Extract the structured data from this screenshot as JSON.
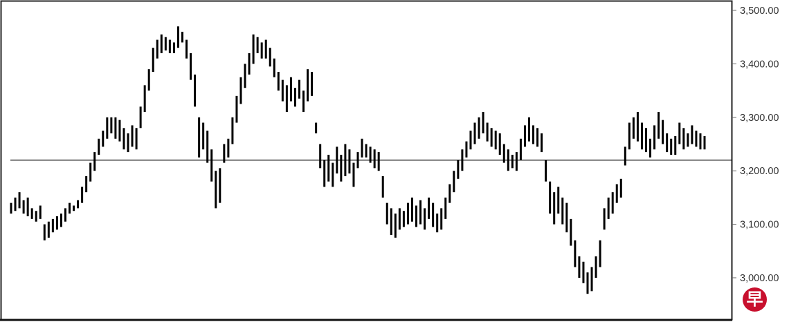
{
  "chart_data": {
    "type": "ohlc",
    "title": "",
    "xlabel": "",
    "ylabel": "",
    "ylim": [
      2930,
      3510
    ],
    "y_axis_position": "right",
    "yticks": [
      3000,
      3100,
      3200,
      3300,
      3400,
      3500
    ],
    "ytick_labels": [
      "3,000.00",
      "3,100.00",
      "3,200.00",
      "3,300.00",
      "3,400.00",
      "3,500.00"
    ],
    "grid": false,
    "reference_line": 3220,
    "bar_color": "#000000",
    "bars_high_low": [
      [
        3140,
        3120
      ],
      [
        3150,
        3125
      ],
      [
        3160,
        3130
      ],
      [
        3145,
        3120
      ],
      [
        3150,
        3115
      ],
      [
        3130,
        3110
      ],
      [
        3125,
        3105
      ],
      [
        3135,
        3110
      ],
      [
        3100,
        3070
      ],
      [
        3105,
        3075
      ],
      [
        3110,
        3085
      ],
      [
        3115,
        3090
      ],
      [
        3120,
        3095
      ],
      [
        3130,
        3105
      ],
      [
        3140,
        3120
      ],
      [
        3135,
        3125
      ],
      [
        3145,
        3130
      ],
      [
        3170,
        3140
      ],
      [
        3190,
        3160
      ],
      [
        3215,
        3180
      ],
      [
        3235,
        3200
      ],
      [
        3260,
        3230
      ],
      [
        3275,
        3245
      ],
      [
        3300,
        3260
      ],
      [
        3300,
        3270
      ],
      [
        3300,
        3260
      ],
      [
        3295,
        3255
      ],
      [
        3280,
        3240
      ],
      [
        3270,
        3235
      ],
      [
        3285,
        3245
      ],
      [
        3280,
        3240
      ],
      [
        3320,
        3280
      ],
      [
        3360,
        3310
      ],
      [
        3390,
        3350
      ],
      [
        3430,
        3385
      ],
      [
        3445,
        3410
      ],
      [
        3455,
        3420
      ],
      [
        3450,
        3425
      ],
      [
        3445,
        3420
      ],
      [
        3440,
        3420
      ],
      [
        3470,
        3430
      ],
      [
        3460,
        3440
      ],
      [
        3445,
        3410
      ],
      [
        3420,
        3370
      ],
      [
        3380,
        3320
      ],
      [
        3300,
        3225
      ],
      [
        3290,
        3240
      ],
      [
        3275,
        3215
      ],
      [
        3240,
        3180
      ],
      [
        3200,
        3130
      ],
      [
        3205,
        3140
      ],
      [
        3250,
        3215
      ],
      [
        3260,
        3225
      ],
      [
        3300,
        3250
      ],
      [
        3340,
        3290
      ],
      [
        3375,
        3325
      ],
      [
        3400,
        3355
      ],
      [
        3420,
        3380
      ],
      [
        3455,
        3400
      ],
      [
        3450,
        3420
      ],
      [
        3440,
        3410
      ],
      [
        3445,
        3410
      ],
      [
        3430,
        3395
      ],
      [
        3410,
        3375
      ],
      [
        3385,
        3350
      ],
      [
        3370,
        3330
      ],
      [
        3360,
        3310
      ],
      [
        3375,
        3330
      ],
      [
        3355,
        3320
      ],
      [
        3370,
        3335
      ],
      [
        3350,
        3310
      ],
      [
        3390,
        3330
      ],
      [
        3385,
        3340
      ],
      [
        3290,
        3270
      ],
      [
        3250,
        3205
      ],
      [
        3220,
        3170
      ],
      [
        3230,
        3180
      ],
      [
        3215,
        3170
      ],
      [
        3245,
        3195
      ],
      [
        3230,
        3180
      ],
      [
        3250,
        3190
      ],
      [
        3240,
        3195
      ],
      [
        3215,
        3170
      ],
      [
        3235,
        3205
      ],
      [
        3260,
        3225
      ],
      [
        3250,
        3225
      ],
      [
        3245,
        3215
      ],
      [
        3240,
        3205
      ],
      [
        3235,
        3200
      ],
      [
        3190,
        3150
      ],
      [
        3140,
        3100
      ],
      [
        3130,
        3080
      ],
      [
        3120,
        3075
      ],
      [
        3130,
        3090
      ],
      [
        3125,
        3095
      ],
      [
        3140,
        3100
      ],
      [
        3150,
        3105
      ],
      [
        3135,
        3095
      ],
      [
        3145,
        3100
      ],
      [
        3130,
        3090
      ],
      [
        3150,
        3110
      ],
      [
        3140,
        3095
      ],
      [
        3120,
        3085
      ],
      [
        3130,
        3090
      ],
      [
        3150,
        3110
      ],
      [
        3175,
        3140
      ],
      [
        3200,
        3160
      ],
      [
        3220,
        3185
      ],
      [
        3240,
        3200
      ],
      [
        3255,
        3225
      ],
      [
        3275,
        3240
      ],
      [
        3290,
        3250
      ],
      [
        3300,
        3260
      ],
      [
        3310,
        3270
      ],
      [
        3290,
        3255
      ],
      [
        3280,
        3245
      ],
      [
        3275,
        3240
      ],
      [
        3270,
        3230
      ],
      [
        3250,
        3215
      ],
      [
        3240,
        3200
      ],
      [
        3230,
        3205
      ],
      [
        3235,
        3200
      ],
      [
        3260,
        3220
      ],
      [
        3285,
        3245
      ],
      [
        3300,
        3255
      ],
      [
        3285,
        3250
      ],
      [
        3280,
        3245
      ],
      [
        3270,
        3235
      ],
      [
        3220,
        3180
      ],
      [
        3180,
        3120
      ],
      [
        3160,
        3100
      ],
      [
        3170,
        3120
      ],
      [
        3150,
        3100
      ],
      [
        3140,
        3085
      ],
      [
        3110,
        3060
      ],
      [
        3070,
        3020
      ],
      [
        3040,
        3000
      ],
      [
        3030,
        2990
      ],
      [
        3010,
        2970
      ],
      [
        3020,
        2975
      ],
      [
        3040,
        3000
      ],
      [
        3070,
        3020
      ],
      [
        3130,
        3090
      ],
      [
        3150,
        3110
      ],
      [
        3160,
        3120
      ],
      [
        3175,
        3140
      ],
      [
        3185,
        3150
      ],
      [
        3245,
        3210
      ],
      [
        3290,
        3240
      ],
      [
        3300,
        3260
      ],
      [
        3310,
        3255
      ],
      [
        3290,
        3240
      ],
      [
        3280,
        3235
      ],
      [
        3260,
        3225
      ],
      [
        3285,
        3240
      ],
      [
        3310,
        3260
      ],
      [
        3295,
        3250
      ],
      [
        3270,
        3235
      ],
      [
        3260,
        3230
      ],
      [
        3265,
        3230
      ],
      [
        3290,
        3250
      ],
      [
        3280,
        3240
      ],
      [
        3270,
        3245
      ],
      [
        3285,
        3250
      ],
      [
        3275,
        3245
      ],
      [
        3270,
        3240
      ],
      [
        3265,
        3240
      ]
    ]
  },
  "logo": {
    "text": "早",
    "color": "#c8102e"
  }
}
